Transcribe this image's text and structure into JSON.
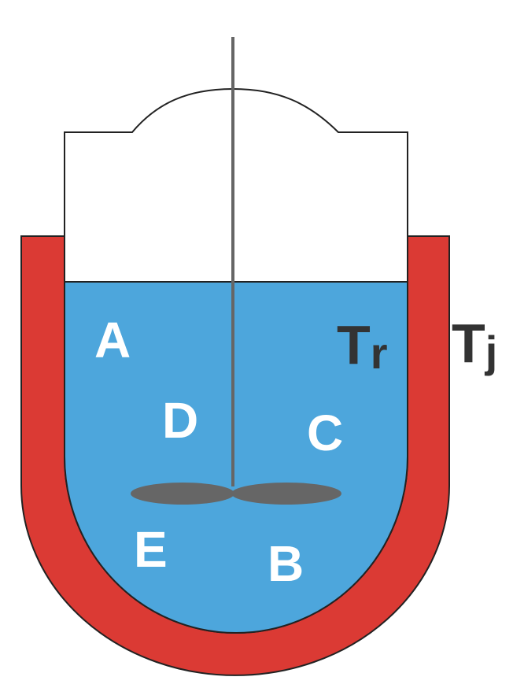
{
  "colors": {
    "jacket": "#db3a34",
    "liquid": "#4da6dc",
    "vessel_outline": "#222222",
    "headspace": "#ffffff",
    "impeller": "#666666",
    "label_text": "#ffffff",
    "temperature_text": "#333333"
  },
  "species_labels": {
    "a": "A",
    "b": "B",
    "c": "C",
    "d": "D",
    "e": "E"
  },
  "temperatures": {
    "reactor": {
      "symbol": "T",
      "subscript": "r"
    },
    "jacket": {
      "symbol": "T",
      "subscript": "j"
    }
  }
}
